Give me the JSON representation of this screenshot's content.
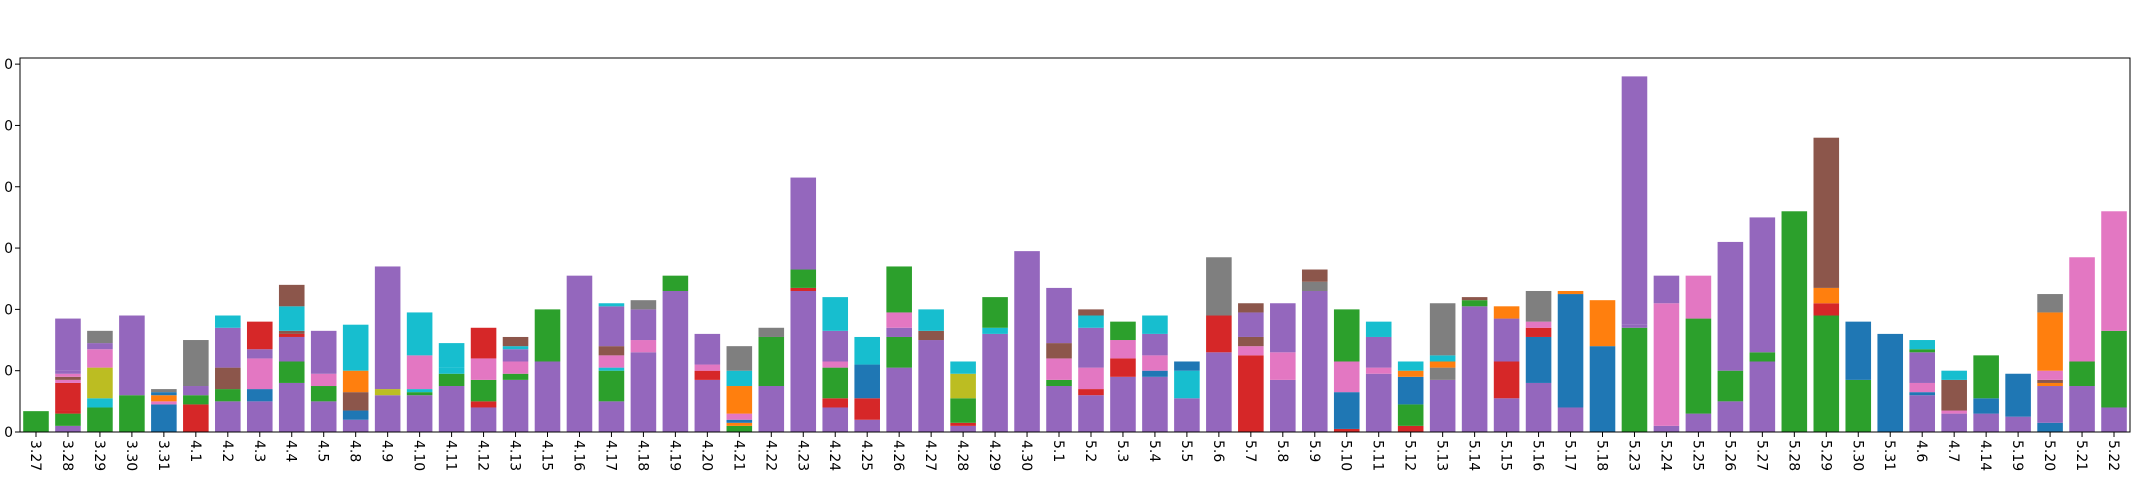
{
  "chart_data": {
    "type": "bar",
    "stacked": true,
    "title": "",
    "xlabel": "",
    "ylabel": "",
    "ylim": [
      0,
      61
    ],
    "yticks": [
      0,
      10,
      20,
      30,
      40,
      50,
      60
    ],
    "ytick_labels": [
      "0",
      "0",
      "0",
      "0",
      "0",
      "0",
      "0"
    ],
    "grid": false,
    "legend": "none",
    "categories": [
      "3.27",
      "3.28",
      "3.29",
      "3.30",
      "3.31",
      "4.1",
      "4.2",
      "4.3",
      "4.4",
      "4.5",
      "4.8",
      "4.9",
      "4.10",
      "4.11",
      "4.12",
      "4.13",
      "4.15",
      "4.16",
      "4.17",
      "4.18",
      "4.19",
      "4.20",
      "4.21",
      "4.22",
      "4.23",
      "4.24",
      "4.25",
      "4.26",
      "4.27",
      "4.28",
      "4.29",
      "4.30",
      "5.1",
      "5.2",
      "5.3",
      "5.4",
      "5.5",
      "5.6",
      "5.7",
      "5.8",
      "5.9",
      "5.10",
      "5.11",
      "5.12",
      "5.13",
      "5.14",
      "5.15",
      "5.16",
      "5.17",
      "5.18",
      "5.23",
      "5.24",
      "5.25",
      "5.26",
      "5.27",
      "5.28",
      "5.29",
      "5.30",
      "5.31",
      "4.6",
      "4.7",
      "4.14",
      "5.19",
      "5.20",
      "5.21",
      "5.22"
    ],
    "series_colors": {
      "blue": "#1f77b4",
      "orange": "#ff7f0e",
      "green": "#2ca02c",
      "red": "#d62728",
      "purple": "#9467bd",
      "brown": "#8c564b",
      "pink": "#e377c2",
      "gray": "#7f7f7f",
      "olive": "#bcbd22",
      "cyan": "#17becf"
    },
    "stacks": [
      [
        [
          "green",
          3.4
        ]
      ],
      [
        [
          "purple",
          1
        ],
        [
          "green",
          2
        ],
        [
          "red",
          0.5
        ],
        [
          "red",
          4.5
        ],
        [
          "pink",
          0.5
        ],
        [
          "brown",
          0.5
        ],
        [
          "pink",
          0.5
        ],
        [
          "purple",
          0.5
        ],
        [
          "purple",
          8.5
        ]
      ],
      [
        [
          "green",
          4
        ],
        [
          "cyan",
          1.5
        ],
        [
          "olive",
          5
        ],
        [
          "pink",
          3
        ],
        [
          "purple",
          1
        ],
        [
          "gray",
          2
        ]
      ],
      [
        [
          "green",
          6
        ],
        [
          "purple",
          13
        ]
      ],
      [
        [
          "blue",
          4.5
        ],
        [
          "pink",
          0.5
        ],
        [
          "orange",
          1
        ],
        [
          "blue",
          0.5
        ],
        [
          "gray",
          0.5
        ]
      ],
      [
        [
          "red",
          4.5
        ],
        [
          "green",
          1.5
        ],
        [
          "purple",
          1.5
        ],
        [
          "gray",
          7.5
        ]
      ],
      [
        [
          "purple",
          5
        ],
        [
          "green",
          2
        ],
        [
          "brown",
          3.5
        ],
        [
          "purple",
          6.5
        ],
        [
          "cyan",
          2
        ]
      ],
      [
        [
          "purple",
          5
        ],
        [
          "blue",
          2
        ],
        [
          "pink",
          5
        ],
        [
          "purple",
          1.5
        ],
        [
          "red",
          4.5
        ]
      ],
      [
        [
          "purple",
          8
        ],
        [
          "green",
          3.5
        ],
        [
          "purple",
          4
        ],
        [
          "red",
          0.5
        ],
        [
          "brown",
          0.5
        ],
        [
          "cyan",
          4
        ],
        [
          "brown",
          3.5
        ]
      ],
      [
        [
          "purple",
          5
        ],
        [
          "green",
          2.5
        ],
        [
          "pink",
          2
        ],
        [
          "purple",
          7
        ]
      ],
      [
        [
          "purple",
          2
        ],
        [
          "blue",
          1.5
        ],
        [
          "brown",
          3
        ],
        [
          "orange",
          3.5
        ],
        [
          "cyan",
          7.5
        ]
      ],
      [
        [
          "purple",
          6
        ],
        [
          "olive",
          1
        ],
        [
          "purple",
          20
        ]
      ],
      [
        [
          "purple",
          6
        ],
        [
          "green",
          0.5
        ],
        [
          "cyan",
          0.5
        ],
        [
          "pink",
          5.5
        ],
        [
          "cyan",
          7
        ]
      ],
      [
        [
          "purple",
          7.5
        ],
        [
          "green",
          2
        ],
        [
          "cyan",
          1
        ],
        [
          "cyan",
          4
        ]
      ],
      [
        [
          "purple",
          4
        ],
        [
          "red",
          1
        ],
        [
          "green",
          3.5
        ],
        [
          "pink",
          3.5
        ],
        [
          "red",
          5
        ]
      ],
      [
        [
          "purple",
          8.5
        ],
        [
          "green",
          1
        ],
        [
          "pink",
          2
        ],
        [
          "purple",
          2
        ],
        [
          "cyan",
          0.5
        ],
        [
          "brown",
          1.5
        ]
      ],
      [
        [
          "purple",
          11.5
        ],
        [
          "green",
          8.5
        ]
      ],
      [
        [
          "purple",
          25.5
        ]
      ],
      [
        [
          "purple",
          5
        ],
        [
          "green",
          5
        ],
        [
          "cyan",
          0.5
        ],
        [
          "pink",
          2
        ],
        [
          "brown",
          1.5
        ],
        [
          "purple",
          6.5
        ],
        [
          "cyan",
          0.5
        ]
      ],
      [
        [
          "purple",
          13
        ],
        [
          "pink",
          2
        ],
        [
          "purple",
          5
        ],
        [
          "gray",
          1.5
        ]
      ],
      [
        [
          "purple",
          23
        ],
        [
          "green",
          2.5
        ]
      ],
      [
        [
          "purple",
          8.5
        ],
        [
          "red",
          1.5
        ],
        [
          "pink",
          1
        ],
        [
          "purple",
          5
        ]
      ],
      [
        [
          "green",
          1
        ],
        [
          "orange",
          0.5
        ],
        [
          "blue",
          0.5
        ],
        [
          "pink",
          1
        ],
        [
          "orange",
          4.5
        ],
        [
          "cyan",
          2.5
        ],
        [
          "gray",
          4
        ]
      ],
      [
        [
          "purple",
          7.5
        ],
        [
          "green",
          8
        ],
        [
          "gray",
          1.5
        ]
      ],
      [
        [
          "purple",
          23
        ],
        [
          "red",
          0.5
        ],
        [
          "green",
          3
        ],
        [
          "purple",
          15
        ]
      ],
      [
        [
          "purple",
          4
        ],
        [
          "red",
          1.5
        ],
        [
          "green",
          5
        ],
        [
          "pink",
          1
        ],
        [
          "purple",
          5
        ],
        [
          "cyan",
          5.5
        ]
      ],
      [
        [
          "purple",
          2
        ],
        [
          "red",
          3.5
        ],
        [
          "blue",
          5.5
        ],
        [
          "cyan",
          4.5
        ]
      ],
      [
        [
          "purple",
          10.5
        ],
        [
          "green",
          5
        ],
        [
          "purple",
          1.5
        ],
        [
          "pink",
          2.5
        ],
        [
          "green",
          7.5
        ]
      ],
      [
        [
          "purple",
          15
        ],
        [
          "brown",
          1.5
        ],
        [
          "cyan",
          3.5
        ]
      ],
      [
        [
          "purple",
          1
        ],
        [
          "red",
          0.5
        ],
        [
          "green",
          4
        ],
        [
          "olive",
          4
        ],
        [
          "cyan",
          2
        ]
      ],
      [
        [
          "purple",
          16
        ],
        [
          "cyan",
          1
        ],
        [
          "green",
          5
        ]
      ],
      [
        [
          "purple",
          29.5
        ]
      ],
      [
        [
          "purple",
          7.5
        ],
        [
          "green",
          1
        ],
        [
          "pink",
          3.5
        ],
        [
          "brown",
          2.5
        ],
        [
          "purple",
          9
        ]
      ],
      [
        [
          "purple",
          6
        ],
        [
          "red",
          1
        ],
        [
          "pink",
          3.5
        ],
        [
          "purple",
          6.5
        ],
        [
          "cyan",
          2
        ],
        [
          "brown",
          1
        ]
      ],
      [
        [
          "purple",
          9
        ],
        [
          "red",
          3
        ],
        [
          "pink",
          3
        ],
        [
          "green",
          3
        ]
      ],
      [
        [
          "purple",
          9
        ],
        [
          "blue",
          1
        ],
        [
          "pink",
          2.5
        ],
        [
          "purple",
          3.5
        ],
        [
          "cyan",
          3
        ]
      ],
      [
        [
          "purple",
          5.5
        ],
        [
          "cyan",
          4.5
        ],
        [
          "blue",
          1.5
        ]
      ],
      [
        [
          "purple",
          13
        ],
        [
          "red",
          6
        ],
        [
          "gray",
          9.5
        ]
      ],
      [
        [
          "red",
          12.5
        ],
        [
          "pink",
          1.5
        ],
        [
          "brown",
          1.5
        ],
        [
          "purple",
          4
        ],
        [
          "brown",
          1.5
        ]
      ],
      [
        [
          "purple",
          8.5
        ],
        [
          "pink",
          4.5
        ],
        [
          "purple",
          8
        ]
      ],
      [
        [
          "purple",
          23
        ],
        [
          "gray",
          1.5
        ],
        [
          "brown",
          2
        ]
      ],
      [
        [
          "red",
          0.5
        ],
        [
          "blue",
          6
        ],
        [
          "pink",
          5
        ],
        [
          "green",
          8.5
        ]
      ],
      [
        [
          "purple",
          9.5
        ],
        [
          "pink",
          1
        ],
        [
          "purple",
          5
        ],
        [
          "cyan",
          2.5
        ]
      ],
      [
        [
          "red",
          1
        ],
        [
          "green",
          3.5
        ],
        [
          "blue",
          4.5
        ],
        [
          "orange",
          1
        ],
        [
          "cyan",
          1.5
        ]
      ],
      [
        [
          "purple",
          8.5
        ],
        [
          "gray",
          2
        ],
        [
          "orange",
          1
        ],
        [
          "cyan",
          1
        ],
        [
          "gray",
          8.5
        ]
      ],
      [
        [
          "purple",
          20.5
        ],
        [
          "green",
          1
        ],
        [
          "brown",
          0.5
        ]
      ],
      [
        [
          "purple",
          5.5
        ],
        [
          "red",
          6
        ],
        [
          "purple",
          7
        ],
        [
          "orange",
          2
        ]
      ],
      [
        [
          "purple",
          8
        ],
        [
          "blue",
          7.5
        ],
        [
          "red",
          1.5
        ],
        [
          "pink",
          1
        ],
        [
          "gray",
          5
        ]
      ],
      [
        [
          "purple",
          4
        ],
        [
          "blue",
          18.5
        ],
        [
          "orange",
          0.5
        ]
      ],
      [
        [
          "blue",
          14
        ],
        [
          "orange",
          7.5
        ]
      ],
      [
        [
          "green",
          17
        ],
        [
          "purple",
          0.5
        ],
        [
          "purple",
          40.5
        ]
      ],
      [
        [
          "purple",
          1
        ],
        [
          "pink",
          20
        ],
        [
          "purple",
          4.5
        ]
      ],
      [
        [
          "purple",
          3
        ],
        [
          "green",
          15.5
        ],
        [
          "pink",
          7
        ]
      ],
      [
        [
          "purple",
          5
        ],
        [
          "green",
          5
        ],
        [
          "purple",
          21
        ]
      ],
      [
        [
          "purple",
          11.5
        ],
        [
          "green",
          1.5
        ],
        [
          "purple",
          22
        ]
      ],
      [
        [
          "green",
          36
        ]
      ],
      [
        [
          "green",
          19
        ],
        [
          "red",
          2
        ],
        [
          "orange",
          2.5
        ],
        [
          "brown",
          24.5
        ]
      ],
      [
        [
          "green",
          8.5
        ],
        [
          "blue",
          9.5
        ]
      ],
      [
        [
          "blue",
          16
        ]
      ],
      [
        [
          "purple",
          6
        ],
        [
          "blue",
          0.5
        ],
        [
          "pink",
          1.5
        ],
        [
          "purple",
          5
        ],
        [
          "green",
          0.5
        ],
        [
          "cyan",
          1.5
        ]
      ],
      [
        [
          "purple",
          3
        ],
        [
          "pink",
          0.5
        ],
        [
          "brown",
          5
        ],
        [
          "cyan",
          1.5
        ]
      ],
      [
        [
          "purple",
          3
        ],
        [
          "blue",
          2.5
        ],
        [
          "green",
          7
        ]
      ],
      [
        [
          "purple",
          2.5
        ],
        [
          "blue",
          7
        ]
      ],
      [
        [
          "blue",
          1.5
        ],
        [
          "purple",
          6
        ],
        [
          "orange",
          0.5
        ],
        [
          "brown",
          0.5
        ],
        [
          "pink",
          1.5
        ],
        [
          "orange",
          9.5
        ],
        [
          "gray",
          3
        ]
      ],
      [
        [
          "purple",
          7.5
        ],
        [
          "green",
          4
        ],
        [
          "pink",
          17
        ]
      ],
      [
        [
          "purple",
          4
        ],
        [
          "green",
          12.5
        ],
        [
          "pink",
          19.5
        ]
      ]
    ]
  }
}
